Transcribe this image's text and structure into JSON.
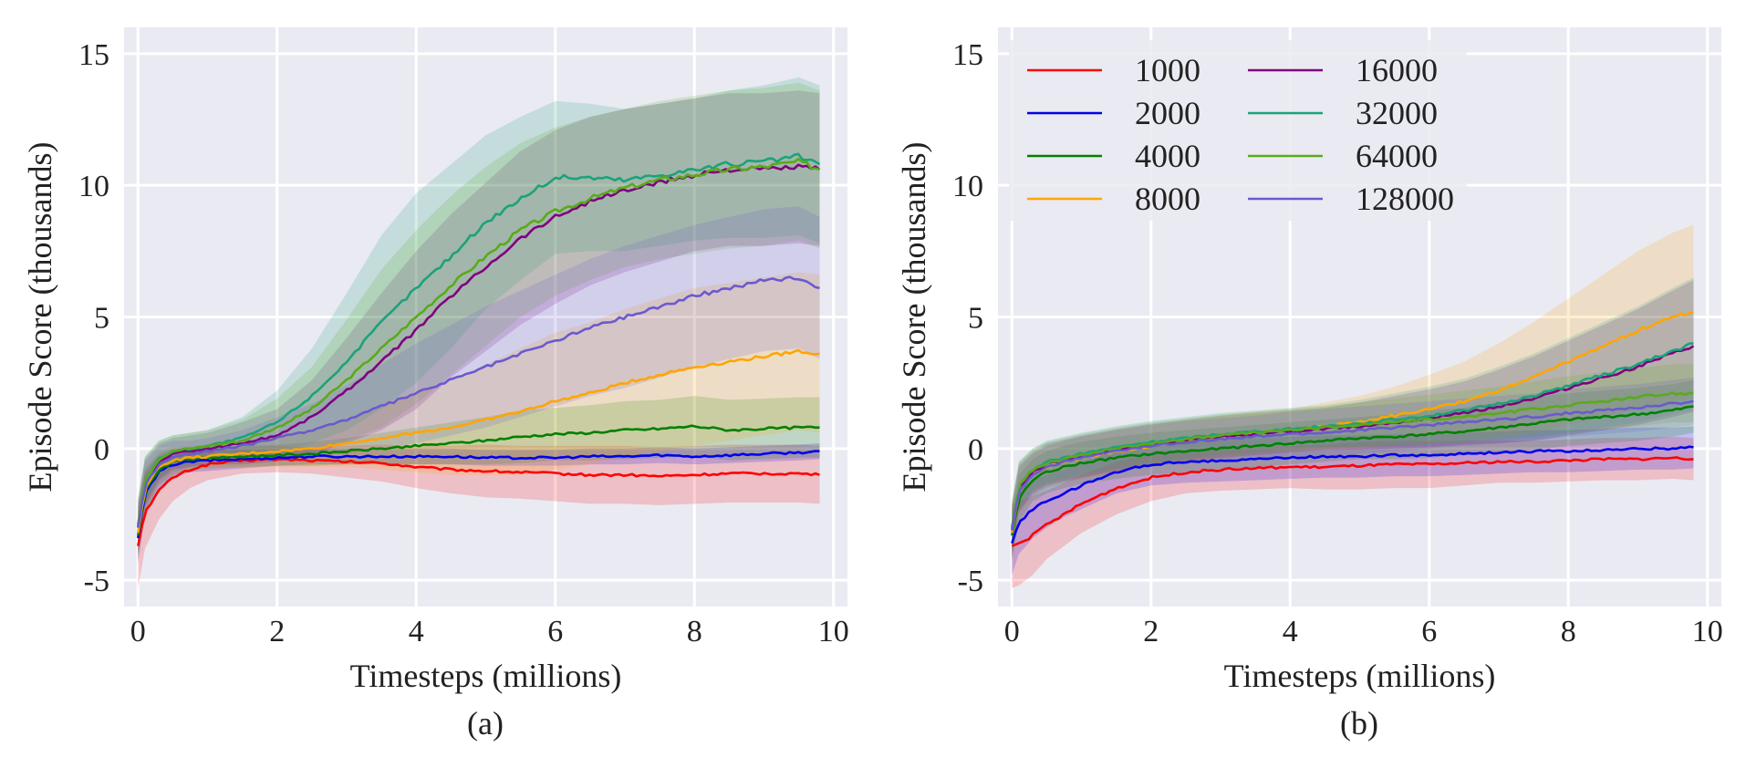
{
  "chart_data": [
    {
      "type": "line",
      "panel": "(a)",
      "xlabel": "Timesteps (millions)",
      "ylabel": "Episode Score (thousands)",
      "xlim": [
        -0.2,
        10.2
      ],
      "ylim": [
        -6,
        16
      ],
      "xticks": [
        0,
        2,
        4,
        6,
        8,
        10
      ],
      "yticks": [
        -5,
        0,
        5,
        10,
        15
      ],
      "grid": true,
      "legend": "none",
      "x": [
        0,
        0.1,
        0.3,
        0.5,
        0.75,
        1,
        1.5,
        2,
        2.5,
        3,
        3.5,
        4,
        4.5,
        5,
        5.5,
        6,
        6.5,
        7,
        7.5,
        8,
        8.5,
        9,
        9.5,
        9.8
      ],
      "series": [
        {
          "name": "1000",
          "color": "#ff0000",
          "values": [
            -3.7,
            -2.4,
            -1.6,
            -1.1,
            -0.8,
            -0.6,
            -0.45,
            -0.4,
            -0.45,
            -0.5,
            -0.55,
            -0.7,
            -0.8,
            -0.85,
            -0.9,
            -0.95,
            -1.0,
            -1.0,
            -1.05,
            -1.0,
            -0.95,
            -0.95,
            -0.95,
            -1.0
          ],
          "band": [
            1.6,
            1.4,
            1.1,
            0.9,
            0.7,
            0.6,
            0.5,
            0.5,
            0.5,
            0.6,
            0.7,
            0.8,
            0.9,
            1.0,
            1.0,
            1.05,
            1.1,
            1.1,
            1.1,
            1.1,
            1.1,
            1.1,
            1.1,
            1.1
          ]
        },
        {
          "name": "2000",
          "color": "#0000ee",
          "values": [
            -3.4,
            -1.7,
            -0.9,
            -0.6,
            -0.5,
            -0.45,
            -0.4,
            -0.35,
            -0.3,
            -0.3,
            -0.3,
            -0.3,
            -0.3,
            -0.35,
            -0.35,
            -0.35,
            -0.3,
            -0.3,
            -0.25,
            -0.3,
            -0.25,
            -0.2,
            -0.15,
            -0.1
          ],
          "band": [
            1.0,
            0.8,
            0.6,
            0.5,
            0.4,
            0.4,
            0.35,
            0.3,
            0.3,
            0.3,
            0.3,
            0.3,
            0.3,
            0.3,
            0.3,
            0.3,
            0.3,
            0.3,
            0.3,
            0.3,
            0.3,
            0.3,
            0.3,
            0.3
          ]
        },
        {
          "name": "4000",
          "color": "#008000",
          "values": [
            -3.3,
            -1.6,
            -0.8,
            -0.5,
            -0.4,
            -0.35,
            -0.3,
            -0.25,
            -0.2,
            -0.1,
            0.0,
            0.1,
            0.2,
            0.3,
            0.45,
            0.55,
            0.6,
            0.7,
            0.75,
            0.85,
            0.7,
            0.75,
            0.8,
            0.8
          ],
          "band": [
            0.9,
            0.8,
            0.6,
            0.5,
            0.4,
            0.4,
            0.4,
            0.4,
            0.45,
            0.5,
            0.6,
            0.7,
            0.8,
            0.9,
            1.0,
            1.0,
            1.05,
            1.1,
            1.1,
            1.15,
            1.15,
            1.15,
            1.15,
            1.15
          ]
        },
        {
          "name": "8000",
          "color": "#ffa500",
          "values": [
            -3.2,
            -1.5,
            -0.7,
            -0.45,
            -0.35,
            -0.3,
            -0.2,
            -0.1,
            0.0,
            0.2,
            0.4,
            0.6,
            0.8,
            1.1,
            1.4,
            1.8,
            2.1,
            2.5,
            2.8,
            3.1,
            3.3,
            3.5,
            3.7,
            3.6
          ],
          "band": [
            1.0,
            0.8,
            0.6,
            0.5,
            0.45,
            0.45,
            0.5,
            0.6,
            0.7,
            0.9,
            1.2,
            1.5,
            1.8,
            2.1,
            2.4,
            2.6,
            2.7,
            2.8,
            2.9,
            3.0,
            3.0,
            3.0,
            3.0,
            3.0
          ]
        },
        {
          "name": "16000",
          "color": "#800080",
          "values": [
            -3.0,
            -1.3,
            -0.5,
            -0.2,
            -0.1,
            0.0,
            0.2,
            0.5,
            1.2,
            2.2,
            3.3,
            4.5,
            5.8,
            6.9,
            8.0,
            8.8,
            9.4,
            9.8,
            10.1,
            10.4,
            10.6,
            10.6,
            10.7,
            10.6
          ],
          "band": [
            1.0,
            0.9,
            0.7,
            0.6,
            0.6,
            0.6,
            0.8,
            1.0,
            1.4,
            2.0,
            2.6,
            3.0,
            3.1,
            3.2,
            3.3,
            3.3,
            3.2,
            3.1,
            3.0,
            2.9,
            2.9,
            2.9,
            2.9,
            2.9
          ]
        },
        {
          "name": "32000",
          "color": "#1aa37a",
          "values": [
            -2.9,
            -1.2,
            -0.4,
            -0.1,
            0.0,
            0.1,
            0.4,
            1.0,
            2.0,
            3.3,
            4.8,
            6.1,
            7.3,
            8.6,
            9.5,
            10.3,
            10.3,
            10.2,
            10.4,
            10.6,
            10.8,
            10.9,
            11.1,
            10.8
          ],
          "band": [
            1.0,
            0.9,
            0.7,
            0.6,
            0.6,
            0.6,
            0.8,
            1.2,
            1.8,
            2.6,
            3.3,
            3.6,
            3.5,
            3.3,
            3.1,
            2.9,
            2.8,
            2.7,
            2.7,
            2.7,
            2.8,
            2.9,
            3.0,
            3.0
          ]
        },
        {
          "name": "64000",
          "color": "#5aaa1a",
          "values": [
            -2.9,
            -1.2,
            -0.4,
            -0.1,
            0.0,
            0.1,
            0.3,
            0.8,
            1.5,
            2.6,
            3.8,
            5.0,
            6.2,
            7.3,
            8.3,
            9.0,
            9.5,
            9.9,
            10.2,
            10.4,
            10.6,
            10.7,
            10.9,
            10.6
          ],
          "band": [
            1.0,
            0.9,
            0.7,
            0.6,
            0.6,
            0.6,
            0.8,
            1.1,
            1.6,
            2.3,
            3.0,
            3.3,
            3.4,
            3.4,
            3.3,
            3.2,
            3.1,
            3.0,
            3.0,
            3.0,
            3.0,
            3.0,
            3.0,
            3.0
          ]
        },
        {
          "name": "128000",
          "color": "#6a5acd",
          "values": [
            -3.0,
            -1.4,
            -0.6,
            -0.3,
            -0.2,
            -0.1,
            0.1,
            0.4,
            0.7,
            1.1,
            1.6,
            2.1,
            2.6,
            3.1,
            3.6,
            4.1,
            4.6,
            5.0,
            5.4,
            5.8,
            6.1,
            6.4,
            6.5,
            6.1
          ],
          "band": [
            1.0,
            0.9,
            0.7,
            0.6,
            0.5,
            0.5,
            0.6,
            0.8,
            1.0,
            1.3,
            1.6,
            1.9,
            2.1,
            2.3,
            2.4,
            2.5,
            2.6,
            2.7,
            2.7,
            2.7,
            2.7,
            2.7,
            2.7,
            2.7
          ]
        }
      ]
    },
    {
      "type": "line",
      "panel": "(b)",
      "xlabel": "Timesteps (millions)",
      "ylabel": "Episode Score (thousands)",
      "xlim": [
        -0.2,
        10.2
      ],
      "ylim": [
        -6,
        16
      ],
      "xticks": [
        0,
        2,
        4,
        6,
        8,
        10
      ],
      "yticks": [
        -5,
        0,
        5,
        10,
        15
      ],
      "grid": true,
      "legend": "top-left",
      "x": [
        0,
        0.1,
        0.3,
        0.5,
        0.75,
        1,
        1.5,
        2,
        2.5,
        3,
        3.5,
        4,
        4.5,
        5,
        5.5,
        6,
        6.5,
        7,
        7.5,
        8,
        8.5,
        9,
        9.5,
        9.8
      ],
      "series": [
        {
          "name": "1000",
          "color": "#ff0000",
          "values": [
            -3.7,
            -3.6,
            -3.3,
            -2.9,
            -2.5,
            -2.1,
            -1.5,
            -1.1,
            -0.9,
            -0.8,
            -0.75,
            -0.7,
            -0.7,
            -0.65,
            -0.6,
            -0.6,
            -0.55,
            -0.5,
            -0.5,
            -0.45,
            -0.4,
            -0.4,
            -0.35,
            -0.4
          ],
          "band": [
            1.6,
            1.6,
            1.5,
            1.3,
            1.2,
            1.1,
            1.0,
            0.9,
            0.8,
            0.8,
            0.8,
            0.8,
            0.85,
            0.9,
            0.9,
            0.9,
            0.85,
            0.8,
            0.8,
            0.8,
            0.8,
            0.8,
            0.8,
            0.8
          ]
        },
        {
          "name": "2000",
          "color": "#0000ee",
          "values": [
            -3.6,
            -2.8,
            -2.3,
            -2.0,
            -1.7,
            -1.4,
            -0.9,
            -0.6,
            -0.5,
            -0.45,
            -0.4,
            -0.35,
            -0.3,
            -0.3,
            -0.25,
            -0.25,
            -0.2,
            -0.15,
            -0.1,
            -0.1,
            -0.05,
            0.0,
            0.0,
            0.05
          ],
          "band": [
            1.2,
            1.2,
            1.1,
            1.0,
            0.9,
            0.9,
            0.8,
            0.8,
            0.8,
            0.8,
            0.8,
            0.8,
            0.8,
            0.8,
            0.8,
            0.8,
            0.8,
            0.8,
            0.8,
            0.8,
            0.8,
            0.8,
            0.8,
            0.8
          ]
        },
        {
          "name": "4000",
          "color": "#008000",
          "values": [
            -3.3,
            -1.9,
            -1.2,
            -0.9,
            -0.7,
            -0.55,
            -0.35,
            -0.2,
            -0.1,
            0.0,
            0.1,
            0.2,
            0.3,
            0.4,
            0.45,
            0.55,
            0.65,
            0.8,
            0.95,
            1.1,
            1.2,
            1.3,
            1.45,
            1.6
          ],
          "band": [
            1.0,
            0.9,
            0.8,
            0.8,
            0.8,
            0.8,
            0.8,
            0.8,
            0.8,
            0.8,
            0.8,
            0.8,
            0.8,
            0.8,
            0.85,
            0.9,
            0.9,
            0.95,
            1.0,
            1.0,
            1.0,
            1.0,
            1.0,
            1.0
          ]
        },
        {
          "name": "8000",
          "color": "#ffa500",
          "values": [
            -3.2,
            -1.6,
            -1.0,
            -0.7,
            -0.5,
            -0.35,
            -0.1,
            0.1,
            0.3,
            0.45,
            0.6,
            0.7,
            0.85,
            1.0,
            1.25,
            1.5,
            1.8,
            2.2,
            2.7,
            3.3,
            3.9,
            4.5,
            5.0,
            5.2
          ],
          "band": [
            1.0,
            0.9,
            0.8,
            0.8,
            0.8,
            0.8,
            0.8,
            0.8,
            0.8,
            0.8,
            0.8,
            0.8,
            0.9,
            1.0,
            1.1,
            1.3,
            1.5,
            1.8,
            2.1,
            2.4,
            2.7,
            3.0,
            3.2,
            3.3
          ]
        },
        {
          "name": "16000",
          "color": "#800080",
          "values": [
            -3.1,
            -1.5,
            -0.9,
            -0.6,
            -0.45,
            -0.3,
            -0.05,
            0.15,
            0.3,
            0.45,
            0.55,
            0.65,
            0.75,
            0.85,
            1.0,
            1.15,
            1.35,
            1.6,
            1.9,
            2.3,
            2.7,
            3.1,
            3.6,
            3.9
          ],
          "band": [
            1.0,
            0.9,
            0.8,
            0.8,
            0.8,
            0.8,
            0.8,
            0.8,
            0.8,
            0.8,
            0.8,
            0.8,
            0.8,
            0.9,
            1.0,
            1.1,
            1.2,
            1.4,
            1.6,
            1.8,
            2.0,
            2.2,
            2.4,
            2.5
          ]
        },
        {
          "name": "32000",
          "color": "#1aa37a",
          "values": [
            -3.0,
            -1.4,
            -0.8,
            -0.5,
            -0.35,
            -0.2,
            0.05,
            0.25,
            0.4,
            0.55,
            0.65,
            0.75,
            0.85,
            0.95,
            1.1,
            1.25,
            1.45,
            1.7,
            2.0,
            2.4,
            2.8,
            3.2,
            3.7,
            4.0
          ],
          "band": [
            1.0,
            0.9,
            0.8,
            0.8,
            0.8,
            0.8,
            0.8,
            0.8,
            0.8,
            0.8,
            0.8,
            0.8,
            0.8,
            0.9,
            1.0,
            1.1,
            1.2,
            1.4,
            1.6,
            1.8,
            2.0,
            2.2,
            2.4,
            2.5
          ]
        },
        {
          "name": "64000",
          "color": "#5aaa1a",
          "values": [
            -3.0,
            -1.4,
            -0.8,
            -0.55,
            -0.4,
            -0.25,
            0.0,
            0.2,
            0.35,
            0.5,
            0.6,
            0.7,
            0.8,
            0.9,
            1.0,
            1.1,
            1.2,
            1.35,
            1.5,
            1.65,
            1.8,
            1.95,
            2.1,
            2.1
          ],
          "band": [
            1.0,
            0.9,
            0.8,
            0.8,
            0.8,
            0.8,
            0.8,
            0.8,
            0.8,
            0.8,
            0.8,
            0.8,
            0.8,
            0.85,
            0.9,
            0.95,
            1.0,
            1.0,
            1.05,
            1.1,
            1.1,
            1.1,
            1.1,
            1.1
          ]
        },
        {
          "name": "128000",
          "color": "#6a5acd",
          "values": [
            -3.1,
            -1.6,
            -1.0,
            -0.7,
            -0.5,
            -0.35,
            -0.1,
            0.1,
            0.25,
            0.35,
            0.45,
            0.55,
            0.6,
            0.7,
            0.8,
            0.9,
            1.0,
            1.1,
            1.2,
            1.35,
            1.45,
            1.55,
            1.7,
            1.8
          ],
          "band": [
            1.0,
            0.9,
            0.8,
            0.8,
            0.8,
            0.8,
            0.8,
            0.8,
            0.8,
            0.8,
            0.8,
            0.85,
            0.9,
            0.9,
            0.9,
            0.9,
            0.9,
            0.9,
            0.9,
            0.9,
            0.9,
            0.9,
            0.9,
            0.9
          ]
        }
      ]
    }
  ]
}
